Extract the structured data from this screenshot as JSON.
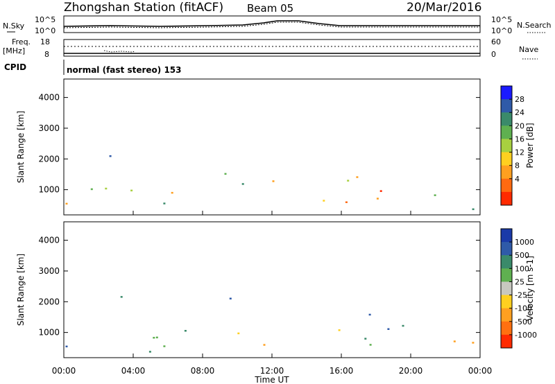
{
  "header": {
    "title": "Zhongshan Station (fitACF)",
    "beam": "Beam 05",
    "date": "20/Mar/2016"
  },
  "panels": {
    "nsky_label": "N.Sky",
    "nsky_tick_hi": "10^5",
    "nsky_tick_lo": "10^0",
    "nsearch_label": "N.Search",
    "nsearch_tick_hi": "10^5",
    "nsearch_tick_lo": "10^0",
    "freq_label_1": "Freq.",
    "freq_label_2": "[MHz]",
    "freq_tick_hi": "18",
    "freq_tick_lo": "8",
    "nave_label": "Nave",
    "nave_tick_hi": "60",
    "nave_tick_lo": "0",
    "cpid_label": "CPID",
    "cpid_value": "normal (fast stereo) 153"
  },
  "chart_data": [
    {
      "type": "heatmap",
      "name": "power",
      "ylabel": "Slant Range [km]",
      "yticks": [
        "1000",
        "2000",
        "3000",
        "4000"
      ],
      "ylim": [
        180,
        4600
      ],
      "colorbar_label": "Power [dB]",
      "colorbar_ticks": [
        "4",
        "8",
        "12",
        "16",
        "20",
        "24",
        "28"
      ],
      "colors": [
        "#1a1aff",
        "#2f5aa8",
        "#3a8a6a",
        "#5fb050",
        "#a8d040",
        "#ffd020",
        "#ffa020",
        "#ff6a10",
        "#ff2a00"
      ]
    },
    {
      "type": "heatmap",
      "name": "velocity",
      "ylabel": "Slant Range [km]",
      "yticks": [
        "1000",
        "2000",
        "3000",
        "4000"
      ],
      "ylim": [
        180,
        4600
      ],
      "colorbar_label": "Velocity [m s-1]",
      "colorbar_ticks": [
        "1000",
        "500",
        "100",
        "25",
        "-25",
        "-100",
        "-500",
        "-1000"
      ],
      "colors": [
        "#1a3aa8",
        "#2f5aa8",
        "#3a8a6a",
        "#5fb050",
        "#c8c8c0",
        "#ffd020",
        "#ffa020",
        "#ff7010",
        "#ff2a00"
      ]
    }
  ],
  "xaxis": {
    "label": "Time UT",
    "ticks": [
      "00:00",
      "04:00",
      "08:00",
      "12:00",
      "16:00",
      "20:00",
      "00:00"
    ]
  }
}
